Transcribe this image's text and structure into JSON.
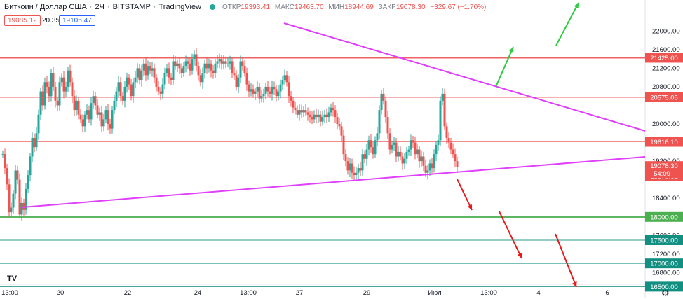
{
  "header": {
    "symbol": "Биткоин / Доллар США",
    "interval": "2Ч",
    "exchange": "BITSTAMP",
    "source": "TradingView",
    "open_label": "ОТКР",
    "open": "19393.41",
    "high_label": "МАКС",
    "high": "19463.70",
    "low_label": "МИН",
    "low": "18944.69",
    "close_label": "ЗАКР",
    "close": "19078.30",
    "change": "−329.67 (−1.70%)",
    "bid": "19085.12",
    "spread": "20.35",
    "ask": "19105.47"
  },
  "colors": {
    "up": "#26a69a",
    "down": "#ef5350",
    "triangle": "#e040fb",
    "arrow_up": "#2ecc40",
    "arrow_down": "#e8191a",
    "level_red": "#ef5350",
    "level_green": "#4caf50",
    "level_teal": "#138f82"
  },
  "chart_data": {
    "type": "candlestick",
    "title": "Биткоин / Доллар США · 2Ч · BITSTAMP",
    "ylim": [
      16400,
      22200
    ],
    "y_ticks": [
      22000,
      21600,
      21200,
      20800,
      20000,
      19200,
      18400,
      17600,
      17200,
      16800
    ],
    "x_ticks": [
      "13:00",
      "20",
      "22",
      "24",
      "13:00",
      "27",
      "29",
      "Июл",
      "13:00",
      "4",
      "6"
    ],
    "levels": [
      {
        "value": 21425.0,
        "label": "21425.00",
        "style": "red-thick"
      },
      {
        "value": 20575.05,
        "label": "20575.05",
        "style": "red"
      },
      {
        "value": 19616.1,
        "label": "19616.10",
        "style": "red-thin"
      },
      {
        "value": 18876.62,
        "label": "18876.62",
        "style": "red-thin"
      },
      {
        "value": 18000.0,
        "label": "18000.00",
        "style": "green-thick"
      },
      {
        "value": 17500.0,
        "label": "17500.00",
        "style": "teal"
      },
      {
        "value": 17000.0,
        "label": "17000.00",
        "style": "teal"
      },
      {
        "value": 16500.0,
        "label": "16500.00",
        "style": "teal"
      }
    ],
    "last_price": {
      "value": 19078.3,
      "label": "19078.30",
      "countdown": "54:09"
    },
    "close_path": [
      [
        0,
        19350
      ],
      [
        3,
        19050
      ],
      [
        6,
        18700
      ],
      [
        9,
        18100
      ],
      [
        12,
        18200
      ],
      [
        15,
        18500
      ],
      [
        18,
        19000
      ],
      [
        21,
        18800
      ],
      [
        24,
        18050
      ],
      [
        27,
        18300
      ],
      [
        30,
        18150
      ],
      [
        33,
        18600
      ],
      [
        36,
        18900
      ],
      [
        39,
        19300
      ],
      [
        42,
        19700
      ],
      [
        45,
        19500
      ],
      [
        48,
        19800
      ],
      [
        51,
        20200
      ],
      [
        54,
        20700
      ],
      [
        57,
        20400
      ],
      [
        60,
        20900
      ],
      [
        63,
        20800
      ],
      [
        66,
        20600
      ],
      [
        69,
        21100
      ],
      [
        72,
        20800
      ],
      [
        75,
        20500
      ],
      [
        78,
        20400
      ],
      [
        81,
        20900
      ],
      [
        84,
        21000
      ],
      [
        87,
        20700
      ],
      [
        90,
        20800
      ],
      [
        93,
        21150
      ],
      [
        96,
        20900
      ],
      [
        99,
        20600
      ],
      [
        102,
        20300
      ],
      [
        105,
        20500
      ],
      [
        108,
        20200
      ],
      [
        111,
        20100
      ],
      [
        114,
        19950
      ],
      [
        117,
        20200
      ],
      [
        120,
        20300
      ],
      [
        123,
        20100
      ],
      [
        126,
        20450
      ],
      [
        129,
        20600
      ],
      [
        132,
        20400
      ],
      [
        135,
        20200
      ],
      [
        138,
        20250
      ],
      [
        141,
        19950
      ],
      [
        144,
        20100
      ],
      [
        147,
        20300
      ],
      [
        150,
        20000
      ],
      [
        153,
        19900
      ],
      [
        156,
        20300
      ],
      [
        159,
        20500
      ],
      [
        162,
        20700
      ],
      [
        165,
        20900
      ],
      [
        168,
        20600
      ],
      [
        171,
        20500
      ],
      [
        174,
        20800
      ],
      [
        177,
        21000
      ],
      [
        180,
        20850
      ],
      [
        183,
        20600
      ],
      [
        186,
        20900
      ],
      [
        189,
        21000
      ],
      [
        192,
        21200
      ],
      [
        195,
        20950
      ],
      [
        198,
        21150
      ],
      [
        201,
        21300
      ],
      [
        204,
        21050
      ],
      [
        207,
        21250
      ],
      [
        210,
        21150
      ],
      [
        213,
        21200
      ],
      [
        216,
        21000
      ],
      [
        219,
        20800
      ],
      [
        222,
        20700
      ],
      [
        225,
        20650
      ],
      [
        228,
        20850
      ],
      [
        231,
        21100
      ],
      [
        234,
        21200
      ],
      [
        237,
        21000
      ],
      [
        240,
        20950
      ],
      [
        243,
        21350
      ],
      [
        246,
        21250
      ],
      [
        249,
        21300
      ],
      [
        252,
        21200
      ],
      [
        255,
        21100
      ],
      [
        258,
        21250
      ],
      [
        261,
        21350
      ],
      [
        264,
        21300
      ],
      [
        267,
        21150
      ],
      [
        270,
        21400
      ],
      [
        273,
        21500
      ],
      [
        276,
        21250
      ],
      [
        279,
        21050
      ],
      [
        282,
        20900
      ],
      [
        285,
        21100
      ],
      [
        288,
        21300
      ],
      [
        291,
        21200
      ],
      [
        294,
        21300
      ],
      [
        297,
        21150
      ],
      [
        300,
        21100
      ],
      [
        303,
        21300
      ],
      [
        306,
        21350
      ],
      [
        309,
        21400
      ],
      [
        312,
        21300
      ],
      [
        315,
        21350
      ],
      [
        318,
        21300
      ],
      [
        321,
        21300
      ],
      [
        324,
        21350
      ],
      [
        327,
        21100
      ],
      [
        330,
        21050
      ],
      [
        333,
        20800
      ],
      [
        336,
        21000
      ],
      [
        339,
        21350
      ],
      [
        342,
        21250
      ],
      [
        345,
        21100
      ],
      [
        348,
        20850
      ],
      [
        351,
        20700
      ],
      [
        354,
        20750
      ],
      [
        357,
        20650
      ],
      [
        360,
        20700
      ],
      [
        363,
        20800
      ],
      [
        366,
        20550
      ],
      [
        369,
        20600
      ],
      [
        372,
        20650
      ],
      [
        375,
        20800
      ],
      [
        378,
        20700
      ],
      [
        381,
        20650
      ],
      [
        384,
        20800
      ],
      [
        387,
        20750
      ],
      [
        390,
        20600
      ],
      [
        393,
        20700
      ],
      [
        396,
        20850
      ],
      [
        399,
        20950
      ],
      [
        402,
        21050
      ],
      [
        405,
        20900
      ],
      [
        408,
        20600
      ],
      [
        411,
        20500
      ],
      [
        414,
        20350
      ],
      [
        417,
        20300
      ],
      [
        420,
        20200
      ],
      [
        423,
        20300
      ],
      [
        426,
        20250
      ],
      [
        429,
        20300
      ],
      [
        432,
        20250
      ],
      [
        435,
        20200
      ],
      [
        438,
        20150
      ],
      [
        441,
        20100
      ],
      [
        444,
        20200
      ],
      [
        447,
        20150
      ],
      [
        450,
        20200
      ],
      [
        453,
        20050
      ],
      [
        456,
        20150
      ],
      [
        459,
        20200
      ],
      [
        462,
        20150
      ],
      [
        465,
        20250
      ],
      [
        468,
        20350
      ],
      [
        471,
        20300
      ],
      [
        474,
        20150
      ],
      [
        477,
        20000
      ],
      [
        480,
        19950
      ],
      [
        483,
        19750
      ],
      [
        486,
        19350
      ],
      [
        489,
        19200
      ],
      [
        492,
        19000
      ],
      [
        495,
        19150
      ],
      [
        498,
        18950
      ],
      [
        501,
        18900
      ],
      [
        504,
        18950
      ],
      [
        507,
        19050
      ],
      [
        510,
        19000
      ],
      [
        513,
        19350
      ],
      [
        516,
        19250
      ],
      [
        519,
        19450
      ],
      [
        522,
        19650
      ],
      [
        525,
        19500
      ],
      [
        528,
        19350
      ],
      [
        531,
        19650
      ],
      [
        534,
        19800
      ],
      [
        537,
        20300
      ],
      [
        540,
        20650
      ],
      [
        543,
        20500
      ],
      [
        546,
        20150
      ],
      [
        549,
        19800
      ],
      [
        552,
        19450
      ],
      [
        555,
        19550
      ],
      [
        558,
        19600
      ],
      [
        561,
        19300
      ],
      [
        564,
        19400
      ],
      [
        567,
        19300
      ],
      [
        570,
        19150
      ],
      [
        573,
        19250
      ],
      [
        576,
        19400
      ],
      [
        579,
        19450
      ],
      [
        582,
        19650
      ],
      [
        585,
        19600
      ],
      [
        588,
        19350
      ],
      [
        591,
        19450
      ],
      [
        594,
        19200
      ],
      [
        597,
        19300
      ],
      [
        600,
        19100
      ],
      [
        603,
        18950
      ],
      [
        606,
        19000
      ],
      [
        609,
        19150
      ],
      [
        612,
        19050
      ],
      [
        615,
        19350
      ],
      [
        618,
        19550
      ],
      [
        621,
        19650
      ],
      [
        624,
        20500
      ],
      [
        627,
        20650
      ],
      [
        630,
        19950
      ],
      [
        633,
        19700
      ],
      [
        636,
        19600
      ],
      [
        639,
        19450
      ],
      [
        642,
        19350
      ],
      [
        645,
        19200
      ],
      [
        648,
        19078
      ]
    ]
  }
}
